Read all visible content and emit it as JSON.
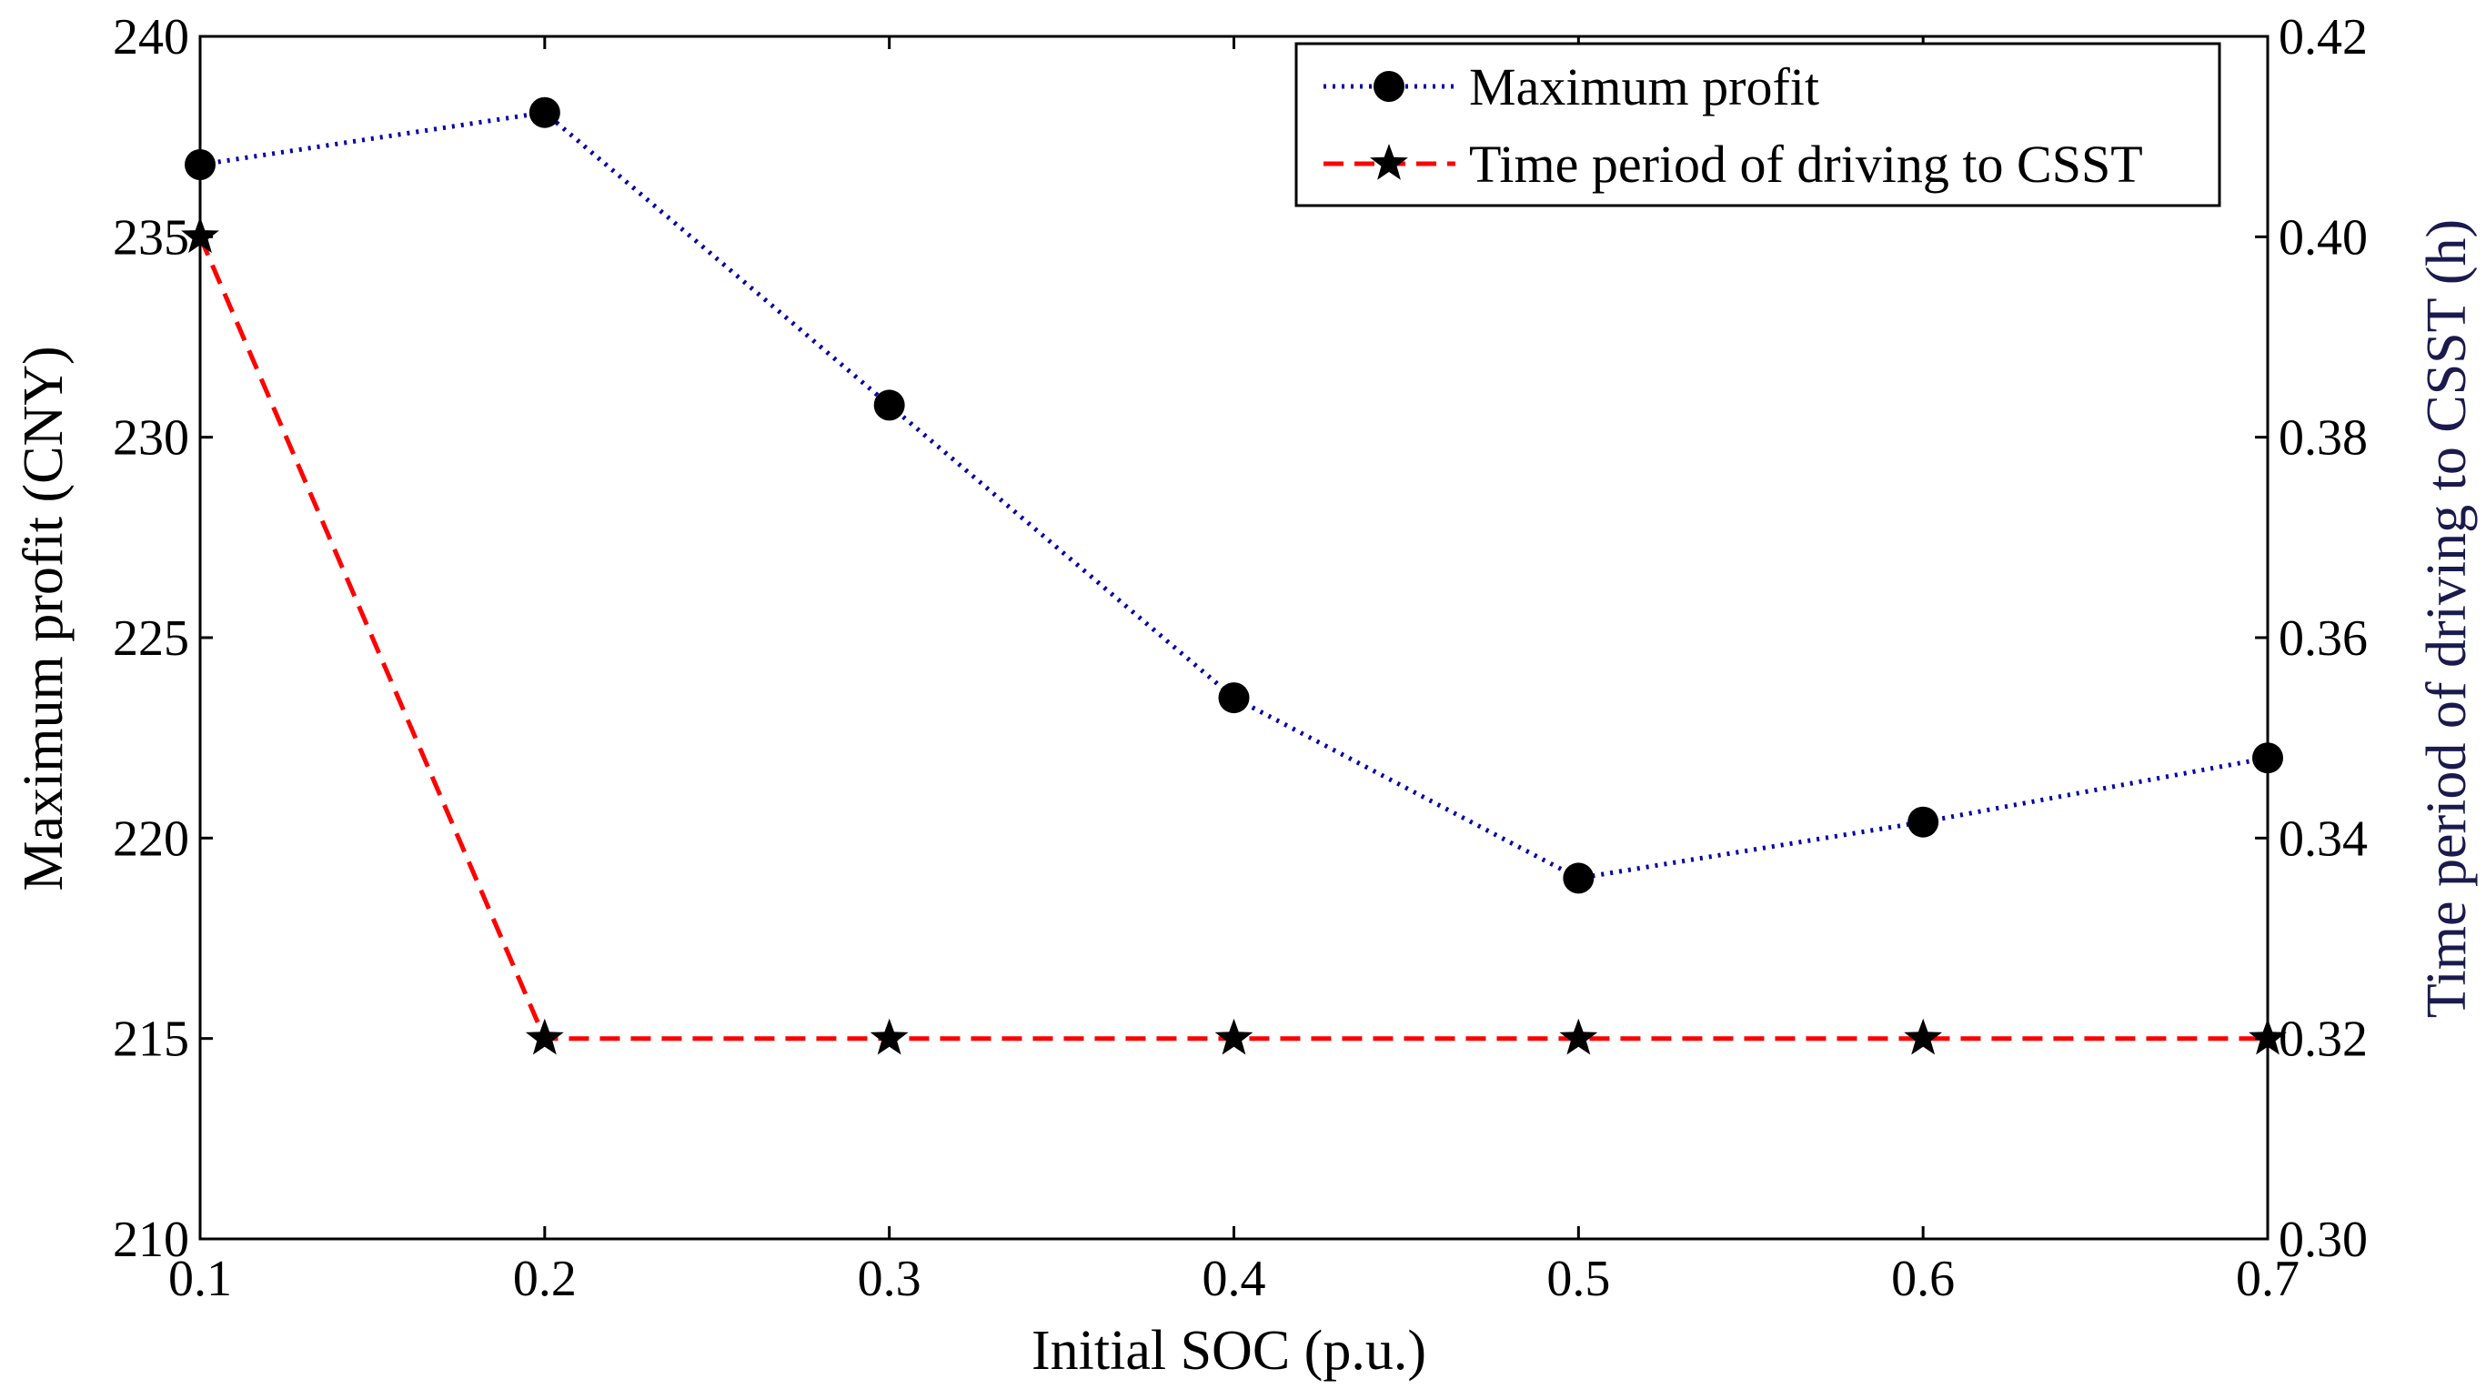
{
  "chart_data": {
    "type": "line",
    "xlabel": "Initial SOC (p.u.)",
    "ylabel_left": "Maximum profit (CNY)",
    "ylabel_right": "Time period of driving to CSST (h)",
    "x": [
      0.1,
      0.2,
      0.3,
      0.4,
      0.5,
      0.6,
      0.7
    ],
    "xlim": [
      0.1,
      0.7
    ],
    "xticks": [
      "0.1",
      "0.2",
      "0.3",
      "0.4",
      "0.5",
      "0.6",
      "0.7"
    ],
    "ylim_left": [
      210,
      240
    ],
    "yticks_left": [
      "210",
      "215",
      "220",
      "225",
      "230",
      "235",
      "240"
    ],
    "ylim_right": [
      0.3,
      0.42
    ],
    "yticks_right": [
      "0.30",
      "0.32",
      "0.34",
      "0.36",
      "0.38",
      "0.40",
      "0.42"
    ],
    "grid": false,
    "legend_position": "top-right",
    "series": [
      {
        "name": "Maximum profit",
        "axis": "left",
        "line_style": "dotted",
        "marker": "circle",
        "color": "#0000aa",
        "values": [
          236.8,
          238.1,
          230.8,
          223.5,
          219.0,
          220.4,
          222.0
        ]
      },
      {
        "name": "Time period of driving to CSST",
        "axis": "right",
        "line_style": "dashed",
        "marker": "star",
        "color": "#ff0000",
        "values": [
          0.4,
          0.32,
          0.32,
          0.32,
          0.32,
          0.32,
          0.32
        ]
      }
    ],
    "colors": {
      "axis": "#000000",
      "left_label": "#000000",
      "right_label": "#1a1a4e",
      "marker": "#000000"
    }
  }
}
